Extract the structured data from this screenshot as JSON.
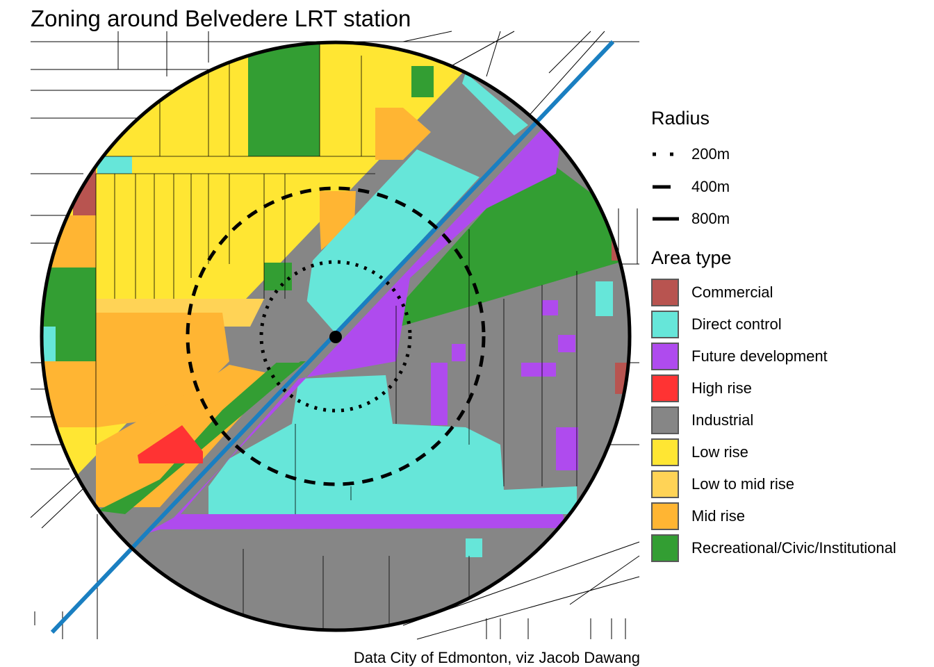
{
  "title": "Zoning around Belvedere LRT station",
  "caption": "Data City of Edmonton, viz Jacob Dawang",
  "legend_radius": {
    "title": "Radius",
    "items": [
      {
        "label": "200m",
        "line_style": "dotted"
      },
      {
        "label": "400m",
        "line_style": "dashed"
      },
      {
        "label": "800m",
        "line_style": "solid"
      }
    ]
  },
  "legend_area": {
    "title": "Area type",
    "items": [
      {
        "label": "Commercial",
        "color": "#B85450"
      },
      {
        "label": "Direct control",
        "color": "#66E6D9"
      },
      {
        "label": "Future development",
        "color": "#AF4BEE"
      },
      {
        "label": "High rise",
        "color": "#FF3333"
      },
      {
        "label": "Industrial",
        "color": "#868686"
      },
      {
        "label": "Low rise",
        "color": "#FFE633"
      },
      {
        "label": "Low to mid rise",
        "color": "#FFD356"
      },
      {
        "label": "Mid rise",
        "color": "#FFB533"
      },
      {
        "label": "Recreational/Civic/Institutional",
        "color": "#339E33"
      }
    ]
  },
  "lrt_line_color": "#1A7FC1"
}
